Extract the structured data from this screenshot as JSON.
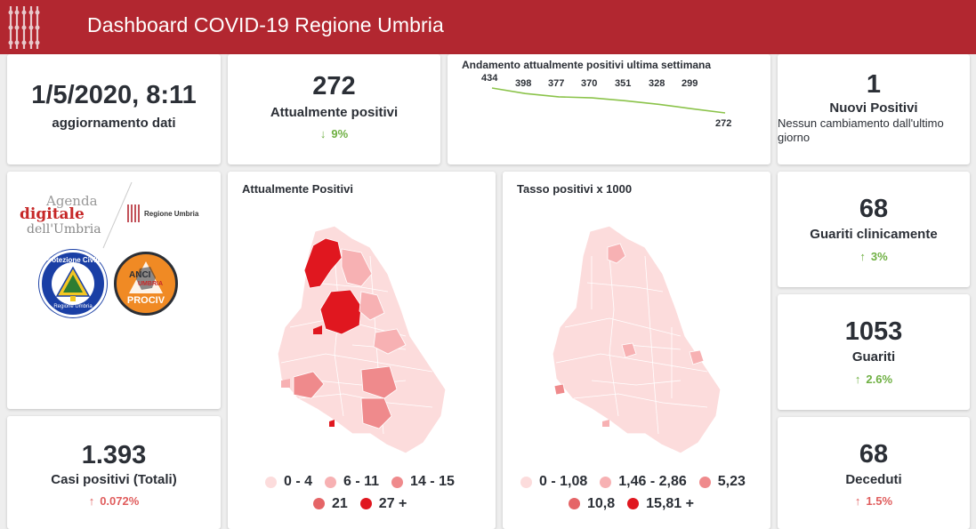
{
  "header": {
    "title": "Dashboard COVID-19 Regione Umbria"
  },
  "update": {
    "datetime": "1/5/2020, 8:11",
    "label": "aggiornamento dati"
  },
  "attualmente": {
    "value": "272",
    "label": "Attualmente positivi",
    "delta": "9%",
    "direction": "down"
  },
  "trend": {
    "title": "Andamento attualmente positivi ultima settimana",
    "values": [
      434,
      398,
      377,
      370,
      351,
      328,
      299,
      272
    ],
    "labels": [
      "434",
      "398",
      "377",
      "370",
      "351",
      "328",
      "299",
      "272"
    ],
    "line_color": "#8bc34a"
  },
  "nuovi": {
    "value": "1",
    "label": "Nuovi Positivi",
    "note": "Nessun cambiamento dall'ultimo giorno"
  },
  "logos": {
    "agenda_line1": "Agenda",
    "agenda_line2": "digitale",
    "agenda_line3": "dell'Umbria",
    "regione": "Regione Umbria",
    "protezione_ring": "Protezione Civile",
    "protezione_bottom": "Regione Umbria",
    "anci_top": "ANCI",
    "anci_mid": "UMBRIA",
    "anci_bottom": "PROCIV"
  },
  "casi": {
    "value": "1.393",
    "label": "Casi positivi (Totali)",
    "delta": "0.072%",
    "direction": "up"
  },
  "map_positivi": {
    "title": "Attualmente Positivi",
    "legend": [
      {
        "label": "0 - 4",
        "color": "#fcdcdc"
      },
      {
        "label": "6 - 11",
        "color": "#f7b1b3"
      },
      {
        "label": "14 - 15",
        "color": "#ef8a8c"
      },
      {
        "label": "21",
        "color": "#e56567"
      },
      {
        "label": "27 +",
        "color": "#e0171f"
      }
    ]
  },
  "map_tasso": {
    "title": "Tasso positivi x 1000",
    "legend": [
      {
        "label": "0 - 1,08",
        "color": "#fcdcdc"
      },
      {
        "label": "1,46 - 2,86",
        "color": "#f7b1b3"
      },
      {
        "label": "5,23",
        "color": "#ef8a8c"
      },
      {
        "label": "10,8",
        "color": "#e56567"
      },
      {
        "label": "15,81 +",
        "color": "#e0171f"
      }
    ]
  },
  "guariti_clin": {
    "value": "68",
    "label": "Guariti clinicamente",
    "delta": "3%",
    "direction": "up"
  },
  "guariti": {
    "value": "1053",
    "label": "Guariti",
    "delta": "2.6%",
    "direction": "up"
  },
  "deceduti": {
    "value": "68",
    "label": "Deceduti",
    "delta": "1.5%",
    "direction": "up"
  },
  "colors": {
    "brand": "#b22730",
    "positive_delta": "#6fb043",
    "negative_delta": "#e05d5d"
  }
}
